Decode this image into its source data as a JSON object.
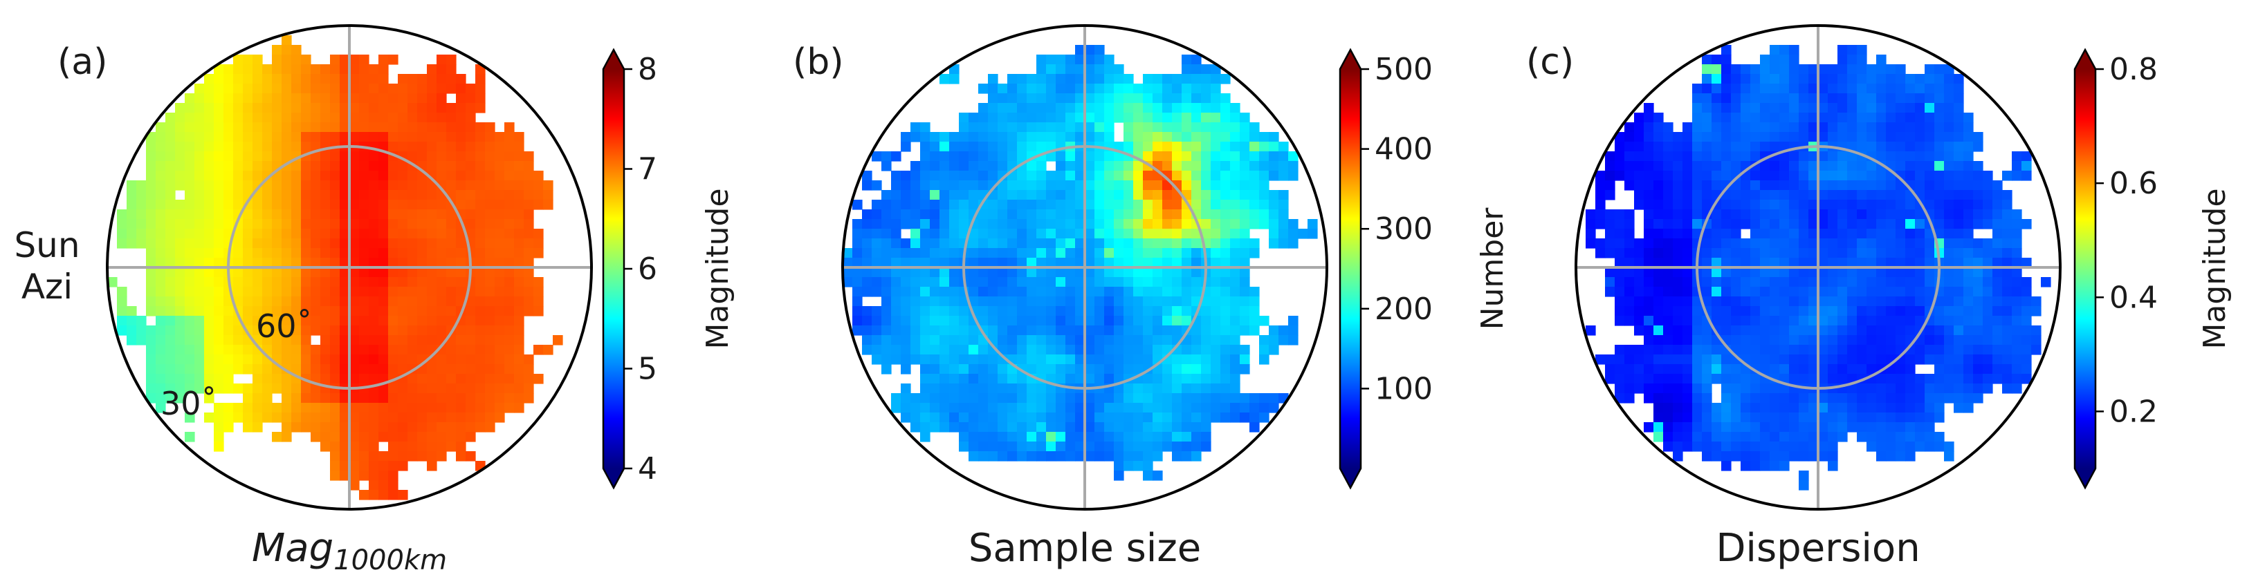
{
  "colormap": [
    "#00007f",
    "#0000ff",
    "#007fff",
    "#00ffff",
    "#7fff7f",
    "#ffff00",
    "#ff7f00",
    "#ff0000",
    "#7f0000"
  ],
  "chart_data": [
    {
      "type": "heatmap",
      "panel_label": "(a)",
      "title": "Mag",
      "title_sub": "1000km",
      "colorbar_label": "Magnitude",
      "ticks": [
        "4",
        "5",
        "6",
        "7",
        "8"
      ],
      "tick_values": [
        4,
        5,
        6,
        7,
        8
      ],
      "vmin": 4,
      "vmax": 8,
      "side_label_1": "Sun",
      "side_label_2": "Azi",
      "ring_labels": [
        "60˚",
        "30˚"
      ],
      "pattern": "magnitude"
    },
    {
      "type": "heatmap",
      "panel_label": "(b)",
      "title": "Sample size",
      "colorbar_label": "Number",
      "ticks": [
        "100",
        "200",
        "300",
        "400",
        "500"
      ],
      "tick_values": [
        100,
        200,
        300,
        400,
        500
      ],
      "vmin": 0,
      "vmax": 500,
      "pattern": "count"
    },
    {
      "type": "heatmap",
      "panel_label": "(c)",
      "title": "Dispersion",
      "colorbar_label": "Magnitude",
      "ticks": [
        "0.2",
        "0.4",
        "0.6",
        "0.8"
      ],
      "tick_values": [
        0.2,
        0.4,
        0.6,
        0.8
      ],
      "vmin": 0.1,
      "vmax": 0.8,
      "pattern": "dispersion"
    }
  ]
}
